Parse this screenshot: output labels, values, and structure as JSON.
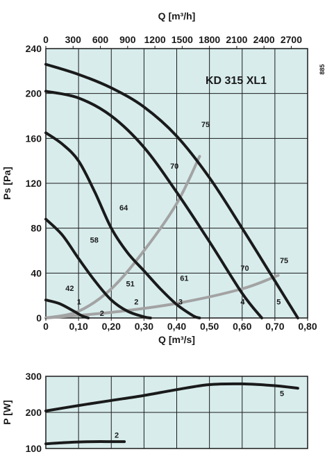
{
  "colors": {
    "background": "#d8ecec",
    "grid": "#1a1a1a",
    "fan_curve": "#1a1a1a",
    "noise_curve": "#a3a3a3"
  },
  "chart_data": [
    {
      "type": "line",
      "title": "KD 315 XL1",
      "code": "885",
      "xlabel": "Q [m³/s]",
      "x_ticks": [
        "0",
        "0,10",
        "0,20",
        "0,30",
        "0,40",
        "0,50",
        "0,60",
        "0,70",
        "0,80"
      ],
      "xlim": [
        0,
        0.8
      ],
      "x2label": "Q [m³/h]",
      "x2_ticks": [
        "0",
        "300",
        "600",
        "900",
        "1200",
        "1500",
        "1800",
        "2100",
        "2400",
        "2700"
      ],
      "x2lim": [
        0,
        2880
      ],
      "ylabel": "Ps [Pa]",
      "y_ticks": [
        "0",
        "40",
        "80",
        "120",
        "160",
        "200",
        "240"
      ],
      "ylim": [
        0,
        240
      ],
      "grid": true,
      "series": [
        {
          "name": "1",
          "x": [
            0,
            0.04,
            0.08,
            0.11,
            0.13
          ],
          "y": [
            16,
            13,
            7,
            2,
            0
          ]
        },
        {
          "name": "2",
          "x": [
            0,
            0.05,
            0.1,
            0.15,
            0.2,
            0.25,
            0.3,
            0.32
          ],
          "y": [
            88,
            74,
            53,
            33,
            16,
            6,
            1,
            0
          ]
        },
        {
          "name": "3",
          "x": [
            0,
            0.05,
            0.1,
            0.15,
            0.2,
            0.25,
            0.3,
            0.35,
            0.4,
            0.45,
            0.47
          ],
          "y": [
            165,
            155,
            140,
            112,
            80,
            58,
            42,
            26,
            12,
            2,
            0
          ]
        },
        {
          "name": "4",
          "x": [
            0,
            0.1,
            0.2,
            0.3,
            0.4,
            0.5,
            0.6,
            0.66
          ],
          "y": [
            202,
            196,
            180,
            152,
            112,
            68,
            22,
            0
          ]
        },
        {
          "name": "5",
          "x": [
            0,
            0.1,
            0.2,
            0.3,
            0.4,
            0.5,
            0.6,
            0.7,
            0.77
          ],
          "y": [
            226,
            217,
            205,
            188,
            162,
            125,
            80,
            33,
            0
          ]
        }
      ],
      "system_curves": [
        {
          "name": "noise-upper",
          "x": [
            0,
            0.1,
            0.2,
            0.3,
            0.4,
            0.47
          ],
          "y": [
            0,
            6,
            26,
            60,
            102,
            144
          ]
        },
        {
          "name": "noise-lower",
          "x": [
            0,
            0.2,
            0.4,
            0.6,
            0.71
          ],
          "y": [
            0,
            5,
            13,
            26,
            38
          ]
        }
      ],
      "annotations": [
        {
          "text": "42",
          "x": 0.06,
          "y": 24
        },
        {
          "text": "1",
          "x": 0.095,
          "y": 12
        },
        {
          "text": "58",
          "x": 0.135,
          "y": 67
        },
        {
          "text": "2",
          "x": 0.165,
          "y": 2
        },
        {
          "text": "51",
          "x": 0.245,
          "y": 28
        },
        {
          "text": "2",
          "x": 0.27,
          "y": 12
        },
        {
          "text": "64",
          "x": 0.225,
          "y": 96
        },
        {
          "text": "3",
          "x": 0.405,
          "y": 12
        },
        {
          "text": "61",
          "x": 0.41,
          "y": 33
        },
        {
          "text": "70",
          "x": 0.38,
          "y": 133
        },
        {
          "text": "75",
          "x": 0.475,
          "y": 170
        },
        {
          "text": "70",
          "x": 0.595,
          "y": 42
        },
        {
          "text": "4",
          "x": 0.595,
          "y": 12
        },
        {
          "text": "75",
          "x": 0.715,
          "y": 49
        },
        {
          "text": "5",
          "x": 0.705,
          "y": 12
        }
      ]
    },
    {
      "type": "line",
      "ylabel": "P [W]",
      "y_ticks": [
        "100",
        "200",
        "300"
      ],
      "ylim": [
        100,
        300
      ],
      "xlim": [
        0,
        0.8
      ],
      "grid": true,
      "series": [
        {
          "name": "5",
          "x": [
            0,
            0.1,
            0.2,
            0.3,
            0.4,
            0.5,
            0.6,
            0.7,
            0.77
          ],
          "y": [
            204,
            219,
            233,
            247,
            263,
            277,
            279,
            274,
            267
          ]
        },
        {
          "name": "2",
          "x": [
            0,
            0.05,
            0.1,
            0.15,
            0.2,
            0.24
          ],
          "y": [
            113,
            116,
            118,
            119,
            119,
            119
          ]
        }
      ],
      "annotations": [
        {
          "text": "5",
          "x": 0.715,
          "y": 245
        },
        {
          "text": "2",
          "x": 0.21,
          "y": 130
        }
      ]
    }
  ]
}
